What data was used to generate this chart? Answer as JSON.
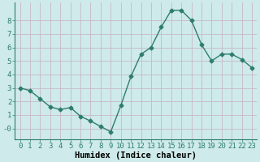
{
  "x": [
    0,
    1,
    2,
    3,
    4,
    5,
    6,
    7,
    8,
    9,
    10,
    11,
    12,
    13,
    14,
    15,
    16,
    17,
    18,
    19,
    20,
    21,
    22,
    23
  ],
  "y": [
    3.0,
    2.8,
    2.2,
    1.6,
    1.4,
    1.55,
    0.9,
    0.55,
    0.15,
    -0.25,
    1.7,
    3.85,
    5.5,
    6.0,
    7.5,
    8.75,
    8.75,
    8.0,
    6.2,
    5.0,
    5.5,
    5.5,
    5.1,
    4.5
  ],
  "line_color": "#2e7d6e",
  "marker": "D",
  "marker_size": 2.5,
  "bg_color": "#ceeaea",
  "grid_color": "#c8b8c8",
  "xlabel": "Humidex (Indice chaleur)",
  "xlim": [
    -0.5,
    23.5
  ],
  "ylim": [
    -0.8,
    9.3
  ],
  "yticks": [
    0,
    1,
    2,
    3,
    4,
    5,
    6,
    7,
    8
  ],
  "ytick_labels": [
    "-0",
    "1",
    "2",
    "3",
    "4",
    "5",
    "6",
    "7",
    "8"
  ],
  "xtick_labels": [
    "0",
    "1",
    "2",
    "3",
    "4",
    "5",
    "6",
    "7",
    "8",
    "9",
    "10",
    "11",
    "12",
    "13",
    "14",
    "15",
    "16",
    "17",
    "18",
    "19",
    "20",
    "21",
    "22",
    "23"
  ],
  "xlabel_fontsize": 7.5,
  "tick_fontsize": 6.5,
  "line_width": 1.0
}
